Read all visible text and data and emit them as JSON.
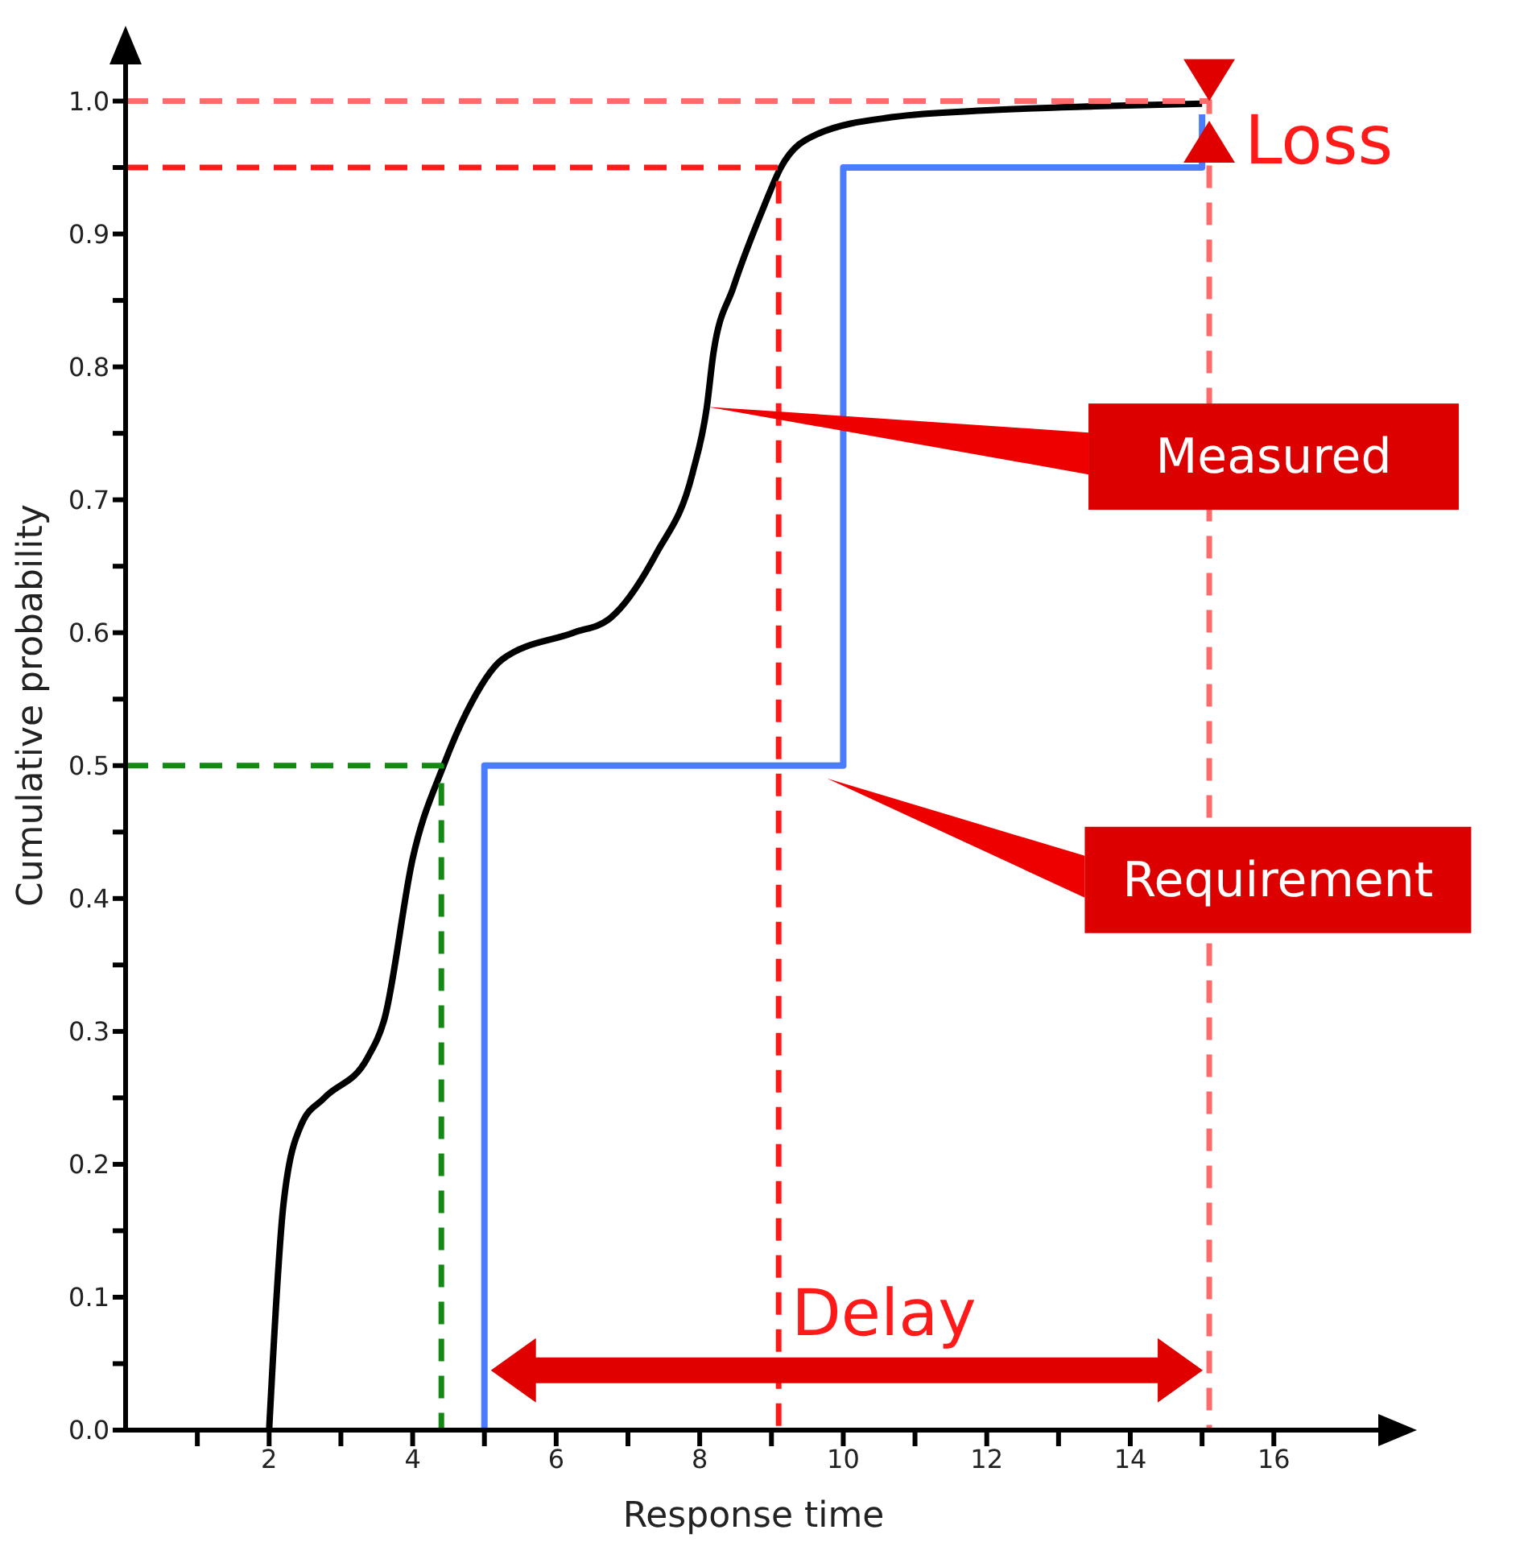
{
  "chart_data": {
    "type": "line",
    "xlabel": "Response time",
    "ylabel": "Cumulative probability",
    "marker": "none",
    "grid": false,
    "legend": false,
    "xlim": [
      0,
      17.5
    ],
    "ylim": [
      0,
      1.03
    ],
    "xticks": [
      {
        "value": 1,
        "label": null
      },
      2,
      {
        "value": 3,
        "label": null
      },
      4,
      {
        "value": 5,
        "label": null
      },
      6,
      {
        "value": 7,
        "label": null
      },
      8,
      {
        "value": 9,
        "label": null
      },
      10,
      {
        "value": 11,
        "label": null
      },
      12,
      {
        "value": 13,
        "label": null
      },
      14,
      {
        "value": 15,
        "label": null
      },
      16
    ],
    "yticks": [
      {
        "value": 0,
        "label": "0.0"
      },
      {
        "value": 0.05,
        "label": null
      },
      {
        "value": 0.1,
        "label": "0.1"
      },
      {
        "value": 0.15,
        "label": null
      },
      {
        "value": 0.2,
        "label": "0.2"
      },
      {
        "value": 0.25,
        "label": null
      },
      {
        "value": 0.3,
        "label": "0.3"
      },
      {
        "value": 0.35,
        "label": null
      },
      {
        "value": 0.4,
        "label": "0.4"
      },
      {
        "value": 0.45,
        "label": null
      },
      {
        "value": 0.5,
        "label": "0.5"
      },
      {
        "value": 0.55,
        "label": null
      },
      {
        "value": 0.6,
        "label": "0.6"
      },
      {
        "value": 0.65,
        "label": null
      },
      {
        "value": 0.7,
        "label": "0.7"
      },
      {
        "value": 0.75,
        "label": null
      },
      {
        "value": 0.8,
        "label": "0.8"
      },
      {
        "value": 0.85,
        "label": null
      },
      {
        "value": 0.9,
        "label": "0.9"
      },
      {
        "value": 0.95,
        "label": null
      },
      {
        "value": 1,
        "label": "1.0"
      }
    ],
    "series": [
      {
        "color": "#000000",
        "line_style": "solid",
        "x": [
          2,
          2.2,
          2.45,
          2.77,
          3.37,
          3.61,
          4,
          4.43,
          4.75,
          5.25,
          6.24,
          6.73,
          7.4,
          7.9,
          8.1,
          8.19,
          8.47,
          8.89,
          9.13,
          9.63,
          10.7,
          12,
          13.5,
          15
        ],
        "values": [
          0,
          0.17,
          0.23,
          0.25,
          0.28,
          0.31,
          0.43,
          0.5,
          0.54,
          0.58,
          0.6,
          0.61,
          0.66,
          0.72,
          0.77,
          0.81,
          0.86,
          0.92,
          0.95,
          0.975,
          0.988,
          0.993,
          0.996,
          0.998
        ]
      },
      {
        "name": "Requirement",
        "color": "#4a7cff",
        "line_style": "solid",
        "x": [
          5,
          5,
          10,
          10,
          15,
          15
        ],
        "values": [
          0,
          0.5,
          0.5,
          0.95,
          0.95,
          0.99
        ]
      },
      {
        "color": "#138a13",
        "line_style": "dashed",
        "x": [
          0,
          4.4,
          4.4
        ],
        "values": [
          0.5,
          0.5,
          0
        ]
      },
      {
        "color": "#ff1a1a",
        "line_style": "dashed",
        "x": [
          0,
          9.1,
          9.1
        ],
        "values": [
          0.95,
          0.95,
          0
        ]
      },
      {
        "color": "#ff6b6b",
        "line_style": "dashed",
        "x": [
          0,
          15.1,
          15.1
        ],
        "values": [
          1,
          1,
          0
        ]
      }
    ],
    "annotations": [
      "Loss",
      "Delay",
      "Measured"
    ]
  }
}
